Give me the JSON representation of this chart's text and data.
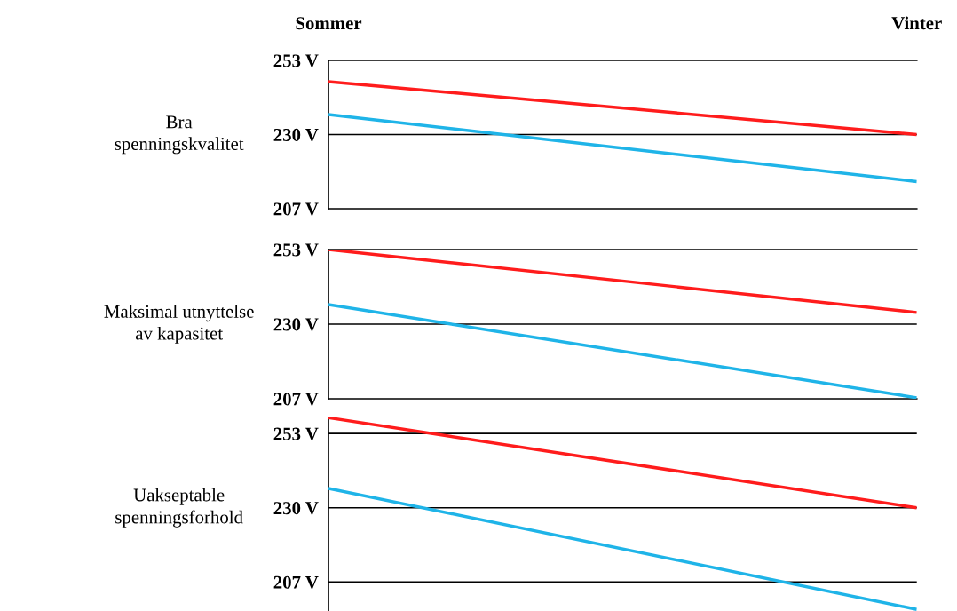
{
  "chart_data": [
    {
      "type": "line",
      "ylabel": "Bra\nspenningskvalitet",
      "categories": [
        "Sommer",
        "Vinter"
      ],
      "ylim": [
        207,
        253
      ],
      "yticks": [
        {
          "value": 207,
          "label": "207 V"
        },
        {
          "value": 230,
          "label": "230 V"
        },
        {
          "value": 253,
          "label": "253 V"
        }
      ],
      "ref_lines": [
        {
          "axis": "y",
          "value": 230,
          "color": "#000000"
        }
      ],
      "series": [
        {
          "color": "#ff1c1c",
          "values": [
            246.4,
            230
          ]
        },
        {
          "color": "#1fb4e8",
          "values": [
            236.2,
            215.4
          ]
        }
      ]
    },
    {
      "type": "line",
      "ylabel": "Maksimal utnyttelse\nav kapasitet",
      "categories": [
        null,
        null
      ],
      "ylim": [
        207,
        253
      ],
      "yticks": [
        {
          "value": 207,
          "label": "207 V"
        },
        {
          "value": 230,
          "label": "230 V"
        },
        {
          "value": 253,
          "label": "253 V"
        }
      ],
      "ref_lines": [
        {
          "axis": "y",
          "value": 230,
          "color": "#000000"
        }
      ],
      "tick_labels": "y",
      "series": [
        {
          "color": "#ff1c1c",
          "values": [
            253,
            233.6
          ]
        },
        {
          "color": "#1fb4e8",
          "values": [
            236,
            207.3
          ]
        }
      ]
    },
    {
      "type": "line",
      "ylabel": "Uakseptable\nspenningsforhold",
      "categories": [
        null,
        null
      ],
      "ylim": [
        198,
        258
      ],
      "yticks": [
        {
          "value": 207,
          "label": "207 V"
        },
        {
          "value": 230,
          "label": "230 V"
        },
        {
          "value": 253,
          "label": "253 V"
        }
      ],
      "ref_lines": [
        {
          "axis": "y",
          "value": 207,
          "color": "#000000"
        },
        {
          "axis": "y",
          "value": 230,
          "color": "#000000"
        },
        {
          "axis": "y",
          "value": 253,
          "color": "#000000"
        }
      ],
      "tick_labels": "y",
      "series": [
        {
          "color": "#ff1c1c",
          "values": [
            257.9,
            230
          ]
        },
        {
          "color": "#1fb4e8",
          "values": [
            236,
            198.5
          ]
        }
      ]
    }
  ]
}
